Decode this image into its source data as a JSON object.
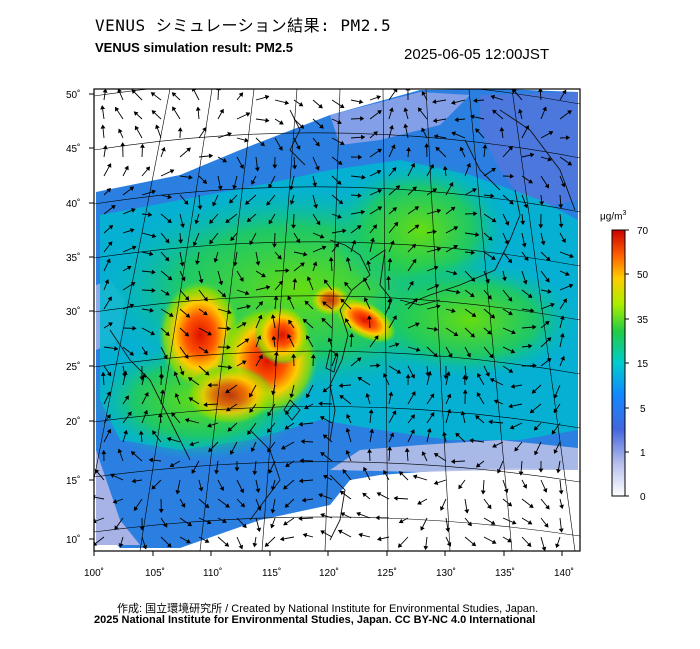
{
  "header": {
    "title_jp": "VENUS シミュレーション結果: PM2.5",
    "title_en": "VENUS simulation result: PM2.5",
    "timestamp": "2025-06-05 12:00JST"
  },
  "map": {
    "lat_ticks": [
      "50˚",
      "45˚",
      "40˚",
      "35˚",
      "30˚",
      "25˚",
      "20˚",
      "15˚",
      "10˚"
    ],
    "lon_ticks": [
      "100˚",
      "105˚",
      "110˚",
      "115˚",
      "120˚",
      "125˚",
      "130˚",
      "135˚",
      "140˚"
    ],
    "colors": {
      "frame": "#000000",
      "land_outline": "#1a1a1a",
      "wind_arrow": "#000000"
    }
  },
  "colorbar": {
    "unit": "μg/m",
    "unit_sup": "3",
    "labels": [
      "70",
      "50",
      "35",
      "15",
      "5",
      "1",
      "0"
    ],
    "colors": [
      "#cc0000",
      "#ff3300",
      "#ffcc00",
      "#66dd00",
      "#00cc66",
      "#0099ff",
      "#3355cc",
      "#7788dd",
      "#e8e8f4"
    ]
  },
  "footer": {
    "credit_jp": "作成: 国立環境研究所 / Created by National Institute for Environmental Studies, Japan.",
    "credit_en": "2025 National Institute for Environmental Studies, Japan. CC BY-NC 4.0 International"
  }
}
